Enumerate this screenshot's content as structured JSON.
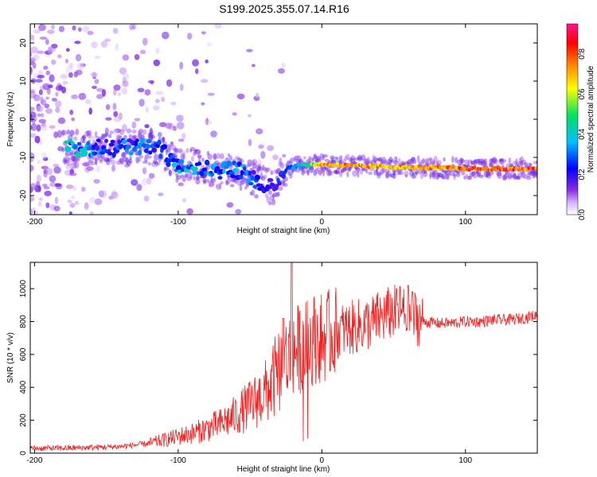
{
  "title": "S199.2025.355.07.14.R16",
  "colors": {
    "trace": "#ee2222",
    "colormap": [
      "#ffffff",
      "#8a2be2",
      "#0000ff",
      "#00bfff",
      "#00e060",
      "#ffff00",
      "#ff8000",
      "#ff0000",
      "#ff1493"
    ]
  },
  "chart_data": [
    {
      "type": "heatmap",
      "title": "S199.2025.355.07.14.R16",
      "xlabel": "Height of straight line (km)",
      "ylabel": "Frequency (Hz)",
      "xlim": [
        -203,
        150
      ],
      "ylim": [
        -25,
        25
      ],
      "xticks": [
        -200,
        -100,
        0,
        100
      ],
      "xtick_labels": [
        "-200",
        "-100",
        "0",
        "100"
      ],
      "yticks": [
        -20,
        -10,
        0,
        10,
        20
      ],
      "ytick_labels": [
        "-20",
        "-10",
        "0",
        "10",
        "20"
      ],
      "colorbar": {
        "label": "Normalized spectral amplitude",
        "range": [
          0,
          0.95
        ],
        "ticks": [
          0.0,
          0.2,
          0.4,
          0.6,
          0.8
        ],
        "tick_labels": [
          "0.0",
          "0.2",
          "0.4",
          "0.6",
          "0.8"
        ]
      },
      "ridge": {
        "description_points": [
          {
            "x": -170,
            "f": -7.5,
            "amp": 0.45
          },
          {
            "x": -150,
            "f": -7.5,
            "amp": 0.3
          },
          {
            "x": -130,
            "f": -7.0,
            "amp": 0.35
          },
          {
            "x": -115,
            "f": -7.5,
            "amp": 0.3
          },
          {
            "x": -100,
            "f": -12.0,
            "amp": 0.4
          },
          {
            "x": -90,
            "f": -12.0,
            "amp": 0.45
          },
          {
            "x": -75,
            "f": -13.5,
            "amp": 0.4
          },
          {
            "x": -60,
            "f": -13.0,
            "amp": 0.4
          },
          {
            "x": -45,
            "f": -16.0,
            "amp": 0.3
          },
          {
            "x": -35,
            "f": -18.0,
            "amp": 0.25
          },
          {
            "x": -25,
            "f": -13.0,
            "amp": 0.3
          },
          {
            "x": -15,
            "f": -12.0,
            "amp": 0.4
          },
          {
            "x": 0,
            "f": -11.8,
            "amp": 0.8
          },
          {
            "x": 20,
            "f": -12.2,
            "amp": 0.8
          },
          {
            "x": 50,
            "f": -12.5,
            "amp": 0.75
          },
          {
            "x": 80,
            "f": -12.8,
            "amp": 0.8
          },
          {
            "x": 110,
            "f": -13.0,
            "amp": 0.9
          },
          {
            "x": 150,
            "f": -13.0,
            "amp": 0.85
          }
        ]
      }
    },
    {
      "type": "line",
      "xlabel": "Height of straight line (km)",
      "ylabel": "SNR (10 * v/v)",
      "xlim": [
        -203,
        150
      ],
      "ylim": [
        0,
        1160
      ],
      "xticks": [
        -200,
        -100,
        0,
        100
      ],
      "xtick_labels": [
        "-200",
        "-100",
        "0",
        "100"
      ],
      "yticks": [
        0,
        200,
        400,
        600,
        800,
        1000
      ],
      "ytick_labels": [
        "0",
        "200",
        "400",
        "600",
        "800",
        "1000"
      ],
      "series": [
        {
          "name": "SNR",
          "x": [
            -203,
            -180,
            -160,
            -140,
            -120,
            -100,
            -90,
            -80,
            -70,
            -60,
            -50,
            -40,
            -35,
            -30,
            -25,
            -20,
            -15,
            -10,
            -5,
            0,
            10,
            20,
            30,
            40,
            50,
            55,
            60,
            65,
            70,
            80,
            90,
            100,
            110,
            120,
            130,
            140,
            150
          ],
          "values": [
            30,
            30,
            35,
            40,
            60,
            100,
            120,
            150,
            180,
            230,
            290,
            360,
            420,
            500,
            560,
            620,
            640,
            660,
            700,
            700,
            740,
            760,
            780,
            820,
            860,
            870,
            820,
            830,
            800,
            790,
            790,
            800,
            800,
            810,
            810,
            820,
            840
          ],
          "peaks": [
            {
              "x": -21,
              "y": 1160
            },
            {
              "x": -27,
              "y": 820
            },
            {
              "x": 52,
              "y": 1000
            },
            {
              "x": 60,
              "y": 1020
            },
            {
              "x": 63,
              "y": 980
            }
          ]
        }
      ]
    }
  ]
}
